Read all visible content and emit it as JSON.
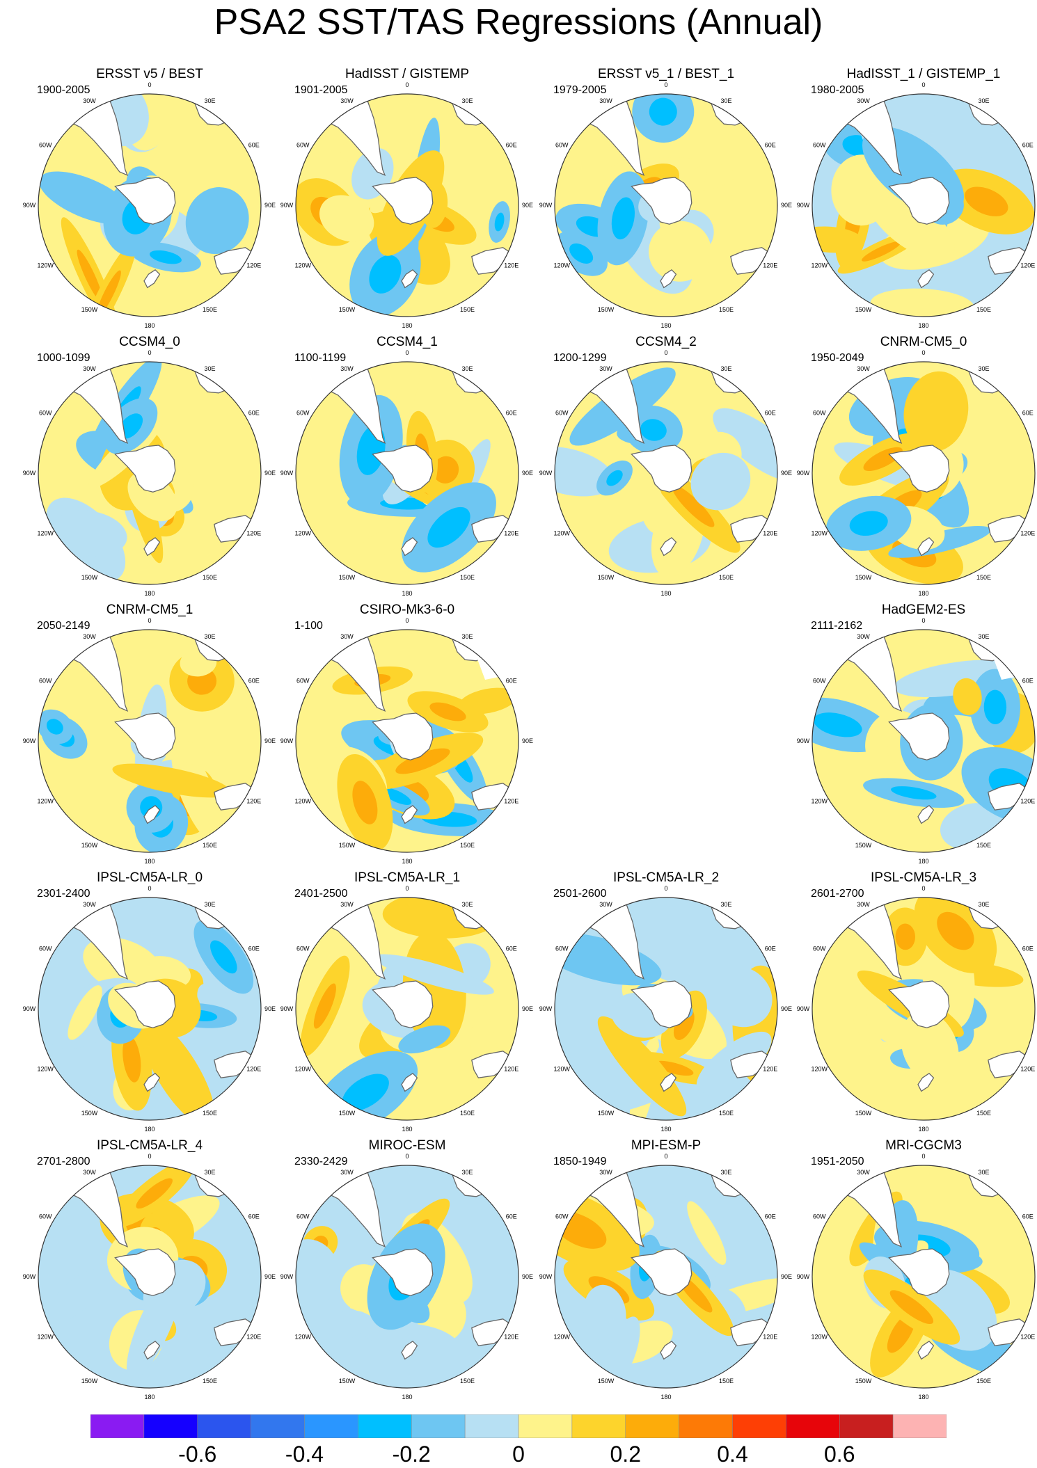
{
  "title": "PSA2 SST/TAS Regressions (Annual)",
  "longitude_labels": [
    "0",
    "30E",
    "60E",
    "90E",
    "120E",
    "150E",
    "180",
    "150W",
    "120W",
    "90W",
    "60W",
    "30W"
  ],
  "land_color": "#ffffff",
  "coast_color": "#666666",
  "panels": [
    {
      "row": 0,
      "col": 0,
      "title": "ERSST v5 / BEST",
      "years": "1900-2005",
      "seed": 11,
      "bias": 0.0,
      "missing_land": false
    },
    {
      "row": 0,
      "col": 1,
      "title": "HadISST / GISTEMP",
      "years": "1901-2005",
      "seed": 23,
      "bias": 0.05,
      "missing_land": false
    },
    {
      "row": 0,
      "col": 2,
      "title": "ERSST v5_1 / BEST_1",
      "years": "1979-2005",
      "seed": 37,
      "bias": 0.0,
      "missing_land": false
    },
    {
      "row": 0,
      "col": 3,
      "title": "HadISST_1 / GISTEMP_1",
      "years": "1980-2005",
      "seed": 41,
      "bias": -0.02,
      "missing_land": false
    },
    {
      "row": 1,
      "col": 0,
      "title": "CCSM4_0",
      "years": "1000-1099",
      "seed": 53,
      "bias": 0.04,
      "missing_land": false
    },
    {
      "row": 1,
      "col": 1,
      "title": "CCSM4_1",
      "years": "1100-1199",
      "seed": 67,
      "bias": 0.04,
      "missing_land": false
    },
    {
      "row": 1,
      "col": 2,
      "title": "CCSM4_2",
      "years": "1200-1299",
      "seed": 71,
      "bias": 0.03,
      "missing_land": false
    },
    {
      "row": 1,
      "col": 3,
      "title": "CNRM-CM5_0",
      "years": "1950-2049",
      "seed": 83,
      "bias": 0.0,
      "missing_land": false
    },
    {
      "row": 2,
      "col": 0,
      "title": "CNRM-CM5_1",
      "years": "2050-2149",
      "seed": 97,
      "bias": 0.0,
      "missing_land": false
    },
    {
      "row": 2,
      "col": 1,
      "title": "CSIRO-Mk3-6-0",
      "years": "1-100",
      "seed": 101,
      "bias": 0.02,
      "missing_land": true
    },
    {
      "row": 2,
      "col": 3,
      "title": "HadGEM2-ES",
      "years": "2111-2162",
      "seed": 113,
      "bias": 0.0,
      "missing_land": true
    },
    {
      "row": 3,
      "col": 0,
      "title": "IPSL-CM5A-LR_0",
      "years": "2301-2400",
      "seed": 127,
      "bias": -0.02,
      "missing_land": false
    },
    {
      "row": 3,
      "col": 1,
      "title": "IPSL-CM5A-LR_1",
      "years": "2401-2500",
      "seed": 131,
      "bias": 0.0,
      "missing_land": false
    },
    {
      "row": 3,
      "col": 2,
      "title": "IPSL-CM5A-LR_2",
      "years": "2501-2600",
      "seed": 149,
      "bias": -0.02,
      "missing_land": false
    },
    {
      "row": 3,
      "col": 3,
      "title": "IPSL-CM5A-LR_3",
      "years": "2601-2700",
      "seed": 157,
      "bias": 0.0,
      "missing_land": false
    },
    {
      "row": 4,
      "col": 0,
      "title": "IPSL-CM5A-LR_4",
      "years": "2701-2800",
      "seed": 163,
      "bias": -0.02,
      "missing_land": false
    },
    {
      "row": 4,
      "col": 1,
      "title": "MIROC-ESM",
      "years": "2330-2429",
      "seed": 173,
      "bias": -0.03,
      "missing_land": false
    },
    {
      "row": 4,
      "col": 2,
      "title": "MPI-ESM-P",
      "years": "1850-1949",
      "seed": 181,
      "bias": -0.01,
      "missing_land": false
    },
    {
      "row": 4,
      "col": 3,
      "title": "MRI-CGCM3",
      "years": "1951-2050",
      "seed": 191,
      "bias": 0.0,
      "missing_land": false
    }
  ],
  "colorbar": {
    "colors": [
      "#8a1bf2",
      "#1500ff",
      "#2b55ee",
      "#3277ee",
      "#2a96ff",
      "#00bfff",
      "#6ec6f2",
      "#b7e0f3",
      "#fef38b",
      "#fdd42c",
      "#fdac0a",
      "#fd7a06",
      "#fe3f05",
      "#e7050a",
      "#c81f1f",
      "#fdb3b3"
    ],
    "labels": [
      "-0.6",
      "-0.4",
      "-0.2",
      "0",
      "0.2",
      "0.4",
      "0.6"
    ],
    "label_boundaries": [
      2,
      4,
      6,
      8,
      10,
      12,
      14
    ]
  }
}
